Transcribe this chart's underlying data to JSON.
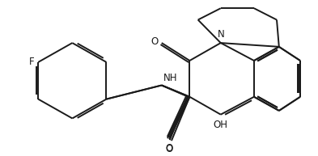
{
  "bg_color": "#ffffff",
  "line_color": "#1a1a1a",
  "line_width": 1.4,
  "font_size": 8.5,
  "figsize": [
    3.93,
    1.93
  ],
  "dpi": 100,
  "xlim": [
    0,
    10
  ],
  "ylim": [
    0,
    5
  ]
}
